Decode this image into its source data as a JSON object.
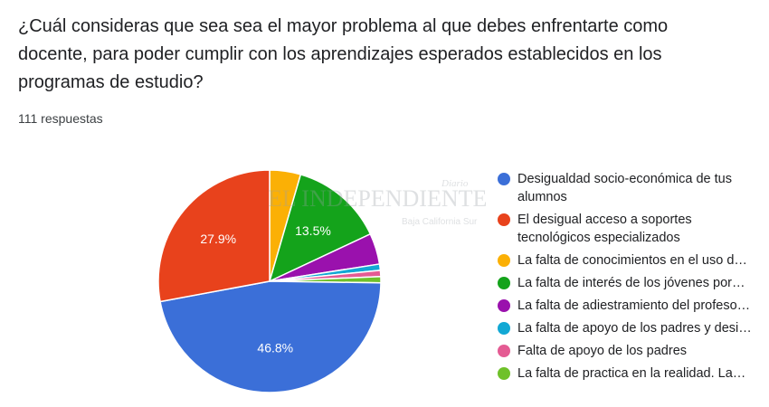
{
  "question": "¿Cuál consideras que sea sea el mayor problema al que debes enfrentarte como docente, para poder cumplir con los aprendizajes esperados establecidos en los programas de estudio?",
  "response_count": "111 respuestas",
  "watermark": {
    "diario": "Diario",
    "name": "EL INDEPENDIENTE",
    "region": "Baja California Sur"
  },
  "chart_data": {
    "type": "pie",
    "title": "",
    "series": [
      {
        "name": "Desigualdad socio-económica de tus alumnos",
        "value": 46.8,
        "label": "46.8%",
        "color": "#3b6fd8"
      },
      {
        "name": "El desigual acceso a soportes tecnológicos especializados",
        "value": 27.9,
        "label": "27.9%",
        "color": "#e8421c"
      },
      {
        "name": "La falta de conocimientos en el uso d…",
        "value": 4.5,
        "label": "",
        "color": "#fbb005"
      },
      {
        "name": "La falta de interés de los jóvenes por…",
        "value": 13.5,
        "label": "13.5%",
        "color": "#14a31b"
      },
      {
        "name": "La falta de adiestramiento del profeso…",
        "value": 4.5,
        "label": "",
        "color": "#9a11ad"
      },
      {
        "name": "La falta de apoyo de los padres y desi…",
        "value": 0.9,
        "label": "",
        "color": "#12a8d4"
      },
      {
        "name": "Falta de apoyo de los padres",
        "value": 0.9,
        "label": "",
        "color": "#e45b93"
      },
      {
        "name": "La falta de practica en la realidad. La…",
        "value": 0.9,
        "label": "",
        "color": "#6fc12a"
      }
    ]
  }
}
